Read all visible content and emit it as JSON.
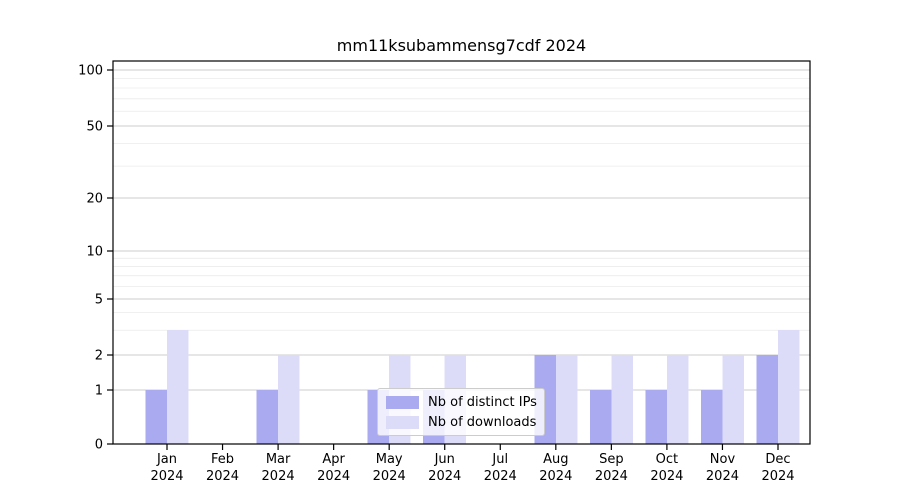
{
  "title": "mm11ksubammensg7cdf 2024",
  "legend": {
    "items": [
      {
        "label": "Nb of distinct IPs"
      },
      {
        "label": "Nb of downloads"
      }
    ]
  },
  "chart_data": {
    "type": "bar",
    "title": "mm11ksubammensg7cdf 2024",
    "categories": [
      "Jan",
      "Feb",
      "Mar",
      "Apr",
      "May",
      "Jun",
      "Jul",
      "Aug",
      "Sep",
      "Oct",
      "Nov",
      "Dec"
    ],
    "year": "2024",
    "series": [
      {
        "name": "Nb of distinct IPs",
        "color": "#aaaaf0",
        "values": [
          1,
          0,
          1,
          0,
          1,
          1,
          0,
          2,
          1,
          1,
          1,
          2
        ]
      },
      {
        "name": "Nb of downloads",
        "color": "#dcdcf8",
        "values": [
          3,
          0,
          2,
          0,
          2,
          2,
          0,
          2,
          2,
          2,
          2,
          3
        ]
      }
    ],
    "yscale": "symlog",
    "ylim": [
      0,
      120
    ],
    "y_ticks": [
      0,
      1,
      2,
      5,
      10,
      20,
      50,
      100
    ],
    "y_minor_ticks": [
      3,
      4,
      6,
      7,
      8,
      9,
      30,
      40,
      60,
      70,
      80,
      90
    ],
    "grid": true,
    "legend_position": "inside lower-center",
    "colors": {
      "major_grid": "#cccccc",
      "minor_grid": "#ebebeb",
      "spine": "#000000",
      "text": "#000000",
      "background": "#ffffff"
    }
  }
}
